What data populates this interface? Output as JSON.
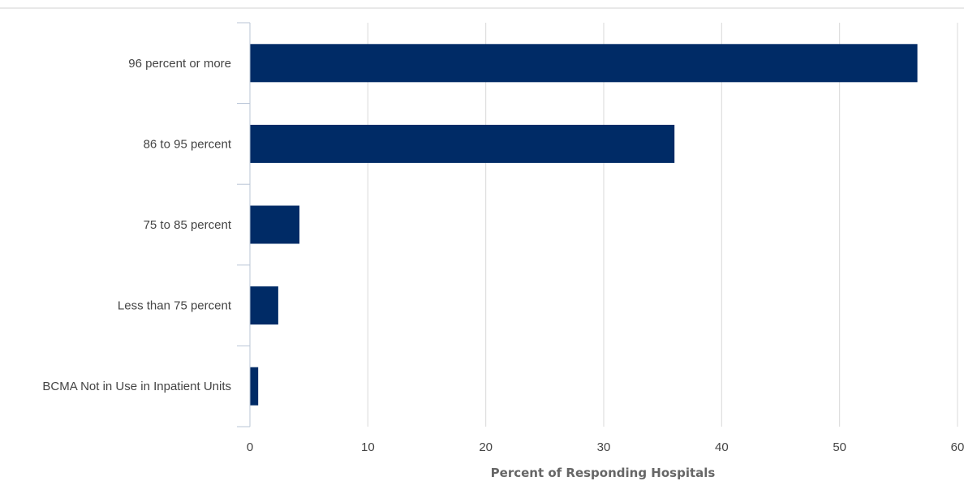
{
  "chart_data": {
    "type": "bar",
    "orientation": "horizontal",
    "categories": [
      "96 percent or more",
      "86 to 95 percent",
      "75 to 85 percent",
      "Less than 75 percent",
      "BCMA Not in Use in Inpatient Units"
    ],
    "values": [
      56.6,
      36.0,
      4.2,
      2.4,
      0.7
    ],
    "xlabel": "Percent of Responding Hospitals",
    "ylabel": "",
    "xlim": [
      0,
      60
    ],
    "xticks": [
      "0",
      "10",
      "20",
      "30",
      "40",
      "50",
      "60"
    ],
    "grid": "vertical",
    "legend": "none",
    "colors": {
      "bar": "#002b66",
      "grid": "#d9d9d9",
      "axis": "#b8c4d6"
    }
  }
}
